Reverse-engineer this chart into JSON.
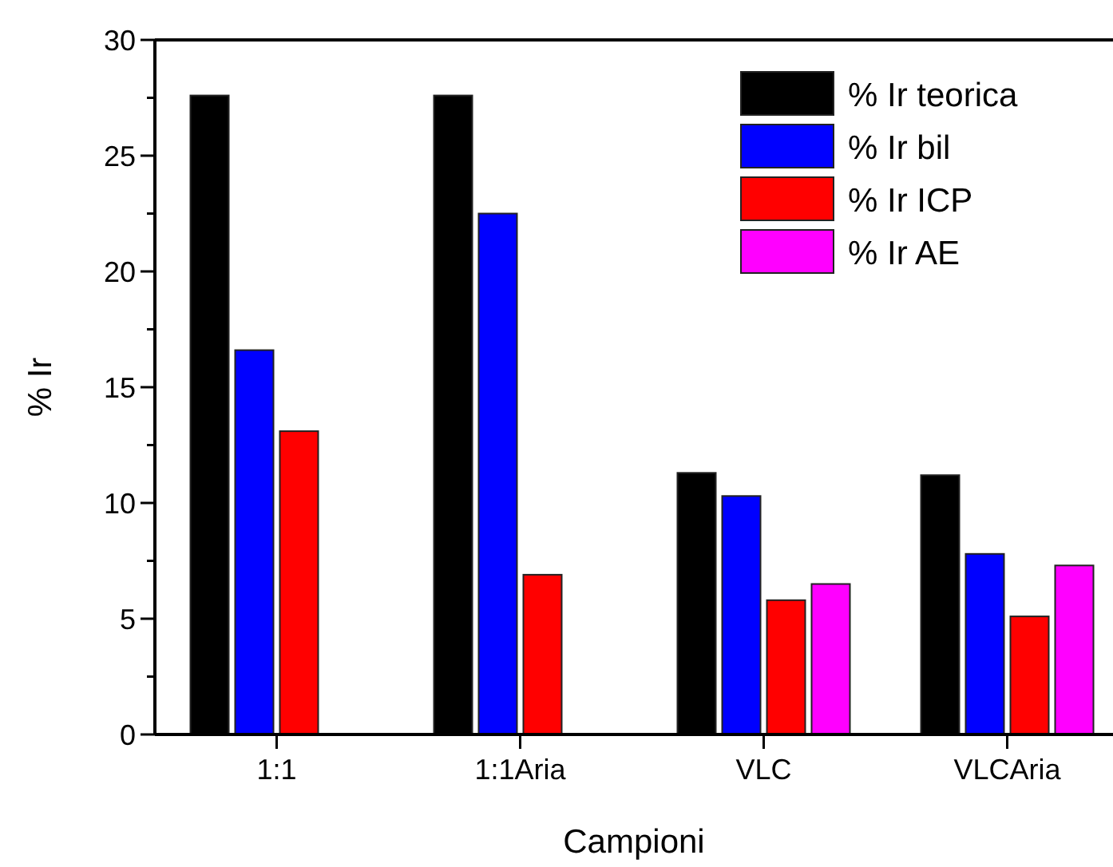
{
  "chart_data": {
    "type": "bar",
    "xlabel": "Campioni",
    "ylabel": "% Ir",
    "categories": [
      "1:1",
      "1:1Aria",
      "VLC",
      "VLCAria"
    ],
    "series": [
      {
        "name": "% Ir teorica",
        "color": "#000000",
        "values": [
          27.6,
          27.6,
          11.3,
          11.2
        ]
      },
      {
        "name": "% Ir bil",
        "color": "#0000ff",
        "values": [
          16.6,
          22.5,
          10.3,
          7.8
        ]
      },
      {
        "name": "% Ir ICP",
        "color": "#ff0000",
        "values": [
          13.1,
          6.9,
          5.8,
          5.1
        ]
      },
      {
        "name": "% Ir AE",
        "color": "#ff00ff",
        "values": [
          null,
          null,
          6.5,
          7.3
        ]
      }
    ],
    "ylim": [
      0,
      30
    ],
    "yticks": [
      0,
      {
        "value": 2.5,
        "label": null
      },
      5,
      {
        "value": 7.5,
        "label": null
      },
      10,
      {
        "value": 12.5,
        "label": null
      },
      15,
      {
        "value": 17.5,
        "label": null
      },
      20,
      {
        "value": 22.5,
        "label": null
      },
      25,
      {
        "value": 27.5,
        "label": null
      },
      30
    ],
    "legend": "top right",
    "grid": false
  }
}
